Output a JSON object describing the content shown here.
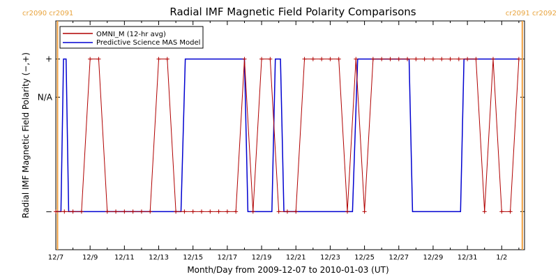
{
  "chart_data": {
    "type": "line",
    "title": "Radial IMF Magnetic Field Polarity Comparisons",
    "xlabel": "Month/Day from 2009-12-07 to 2010-01-03 (UT)",
    "ylabel": "Radial IMF Magnetic Field Polarity (−,+)",
    "xlim": [
      0,
      27.33
    ],
    "ylim": [
      -1.5,
      1.5
    ],
    "x_tick_labels": [
      "12/7",
      "12/9",
      "12/11",
      "12/13",
      "12/15",
      "12/17",
      "12/19",
      "12/21",
      "12/23",
      "12/25",
      "12/27",
      "12/29",
      "12/31",
      "1/2"
    ],
    "x_tick_values": [
      0,
      2,
      4,
      6,
      8,
      10,
      12,
      14,
      16,
      18,
      20,
      22,
      24,
      26
    ],
    "y_tick_labels": [
      "+",
      "N/A",
      "−"
    ],
    "y_tick_values": [
      1,
      0.5,
      -1
    ],
    "carrington": [
      {
        "x": 0.1,
        "label": "cr2090 cr2091",
        "align": "left"
      },
      {
        "x": 27.2,
        "label": "cr2091 cr2092",
        "align": "right"
      }
    ],
    "line_colors": {
      "omni": "#b00000",
      "mas": "#0000d0",
      "carrington": "#f0a040"
    },
    "series": [
      {
        "name": "OMNI_M (12-hr avg)",
        "marker": "+",
        "x": [
          0,
          0.5,
          1,
          1.5,
          2,
          2.5,
          3,
          3.5,
          4,
          4.5,
          5,
          5.5,
          6,
          6.5,
          7,
          7.5,
          8,
          8.5,
          9,
          9.5,
          10,
          10.5,
          11,
          11.5,
          12,
          12.5,
          13,
          13.5,
          14,
          14.5,
          15,
          15.5,
          16,
          16.5,
          17,
          17.5,
          18,
          18.5,
          19,
          19.5,
          20,
          20.5,
          21,
          21.5,
          22,
          22.5,
          23,
          23.5,
          24,
          24.5,
          25,
          25.5,
          26,
          26.5,
          27
        ],
        "values": [
          -1,
          -1,
          -1,
          -1,
          1,
          1,
          -1,
          -1,
          -1,
          -1,
          -1,
          -1,
          1,
          1,
          -1,
          -1,
          -1,
          -1,
          -1,
          -1,
          -1,
          -1,
          1,
          -1,
          1,
          1,
          -1,
          -1,
          -1,
          1,
          1,
          1,
          1,
          1,
          -1,
          1,
          -1,
          1,
          1,
          1,
          1,
          1,
          1,
          1,
          1,
          1,
          1,
          1,
          1,
          1,
          -1,
          1,
          -1,
          -1,
          1
        ]
      },
      {
        "name": "Predictive Science MAS Model",
        "marker": "none",
        "x": [
          0,
          0.3,
          0.45,
          0.6,
          0.75,
          0.9,
          7.3,
          7.55,
          11.0,
          11.2,
          11.5,
          12.2,
          12.6,
          12.8,
          13.1,
          13.3,
          17.3,
          17.6,
          17.9,
          20.6,
          20.8,
          23.6,
          23.8,
          27.0
        ],
        "values": [
          -1,
          -1,
          1,
          1,
          -1,
          -1,
          -1,
          1,
          1,
          -1,
          -1,
          -1,
          -1,
          1,
          1,
          -1,
          -1,
          1,
          1,
          1,
          -1,
          -1,
          1,
          1
        ]
      }
    ],
    "legend_position": "top-left"
  }
}
